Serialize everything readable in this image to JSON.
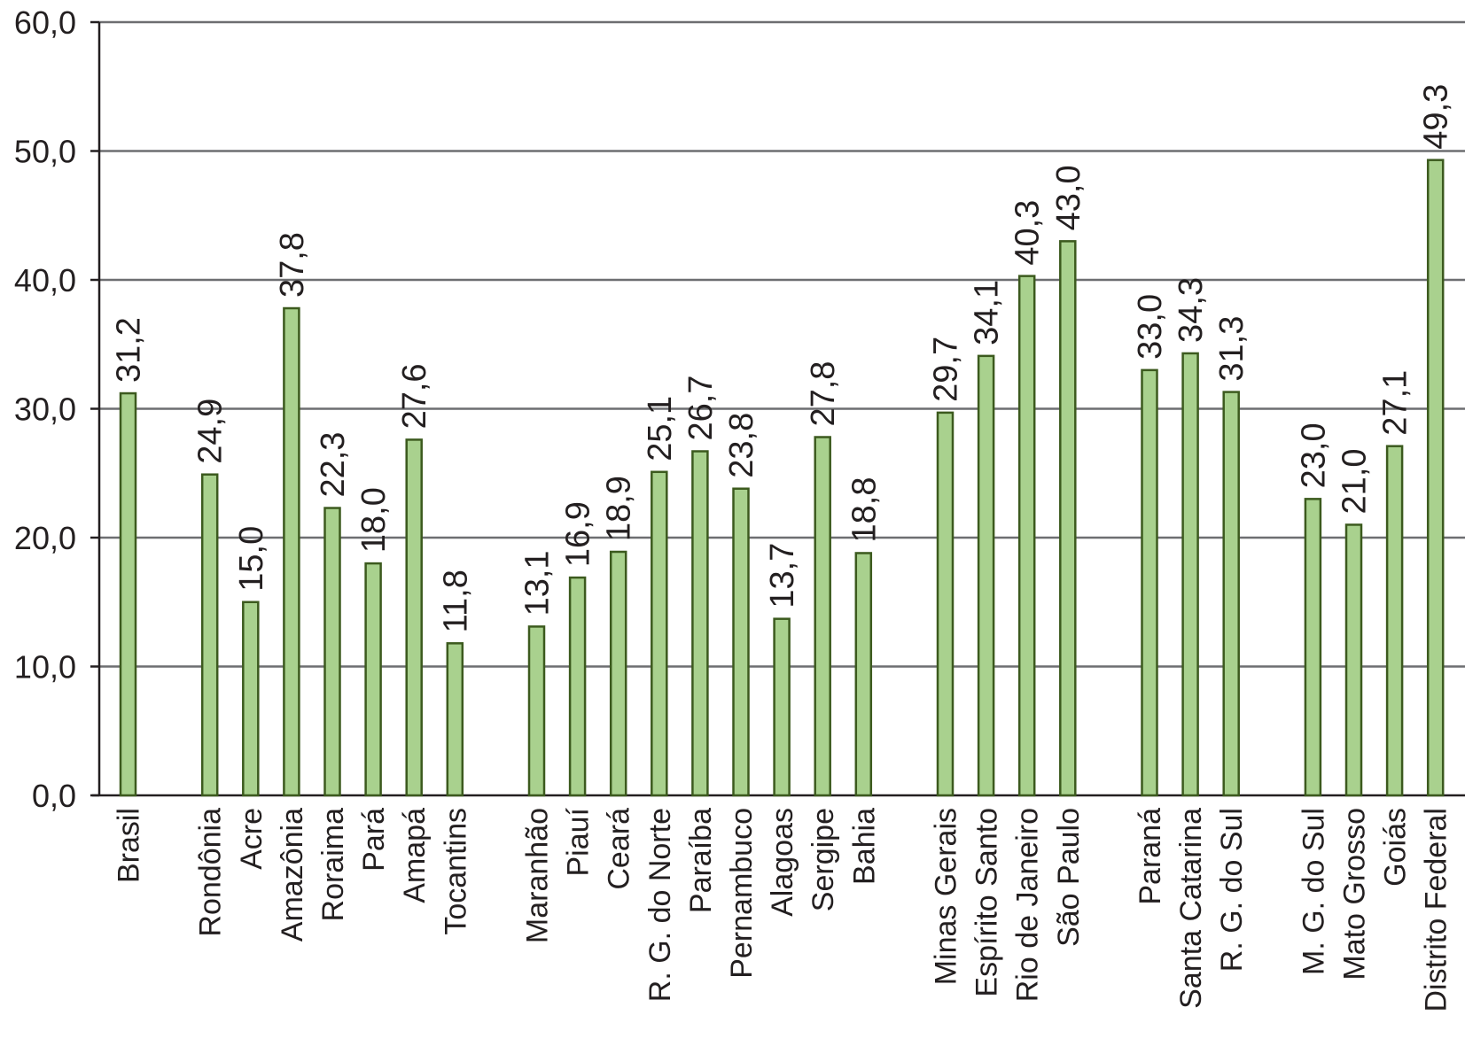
{
  "chart_data": {
    "type": "bar",
    "title": "",
    "xlabel": "",
    "ylabel": "",
    "ylim": [
      0,
      60
    ],
    "yticks": [
      "0,0",
      "10,0",
      "20,0",
      "30,0",
      "40,0",
      "50,0",
      "60,0"
    ],
    "grid": true,
    "legend": "none",
    "bar_color": "#a9d18e",
    "bar_stroke": "#3c5a1e",
    "categories": [
      "Brasil",
      "",
      "Rondônia",
      "Acre",
      "Amazônia",
      "Roraima",
      "Pará",
      "Amapá",
      "Tocantins",
      "",
      "Maranhão",
      "Piauí",
      "Ceará",
      "R. G. do Norte",
      "Paraíba",
      "Pernambuco",
      "Alagoas",
      "Sergipe",
      "Bahia",
      "",
      "Minas Gerais",
      "Espírito Santo",
      "Rio de Janeiro",
      "São Paulo",
      "",
      "Paraná",
      "Santa Catarina",
      "R. G. do Sul",
      "",
      "M. G. do Sul",
      "Mato Grosso",
      "Goiás",
      "Distrito Federal"
    ],
    "values": [
      31.2,
      null,
      24.9,
      15.0,
      37.8,
      22.3,
      18.0,
      27.6,
      11.8,
      null,
      13.1,
      16.9,
      18.9,
      25.1,
      26.7,
      23.8,
      13.7,
      27.8,
      18.8,
      null,
      29.7,
      34.1,
      40.3,
      43.0,
      null,
      33.0,
      34.3,
      31.3,
      null,
      23.0,
      21.0,
      27.1,
      49.3
    ],
    "labels": [
      "31,2",
      "",
      "24,9",
      "15,0",
      "37,8",
      "22,3",
      "18,0",
      "27,6",
      "11,8",
      "",
      "13,1",
      "16,9",
      "18,9",
      "25,1",
      "26,7",
      "23,8",
      "13,7",
      "27,8",
      "18,8",
      "",
      "29,7",
      "34,1",
      "40,3",
      "43,0",
      "",
      "33,0",
      "34,3",
      "31,3",
      "",
      "23,0",
      "21,0",
      "27,1",
      "49,3"
    ]
  }
}
